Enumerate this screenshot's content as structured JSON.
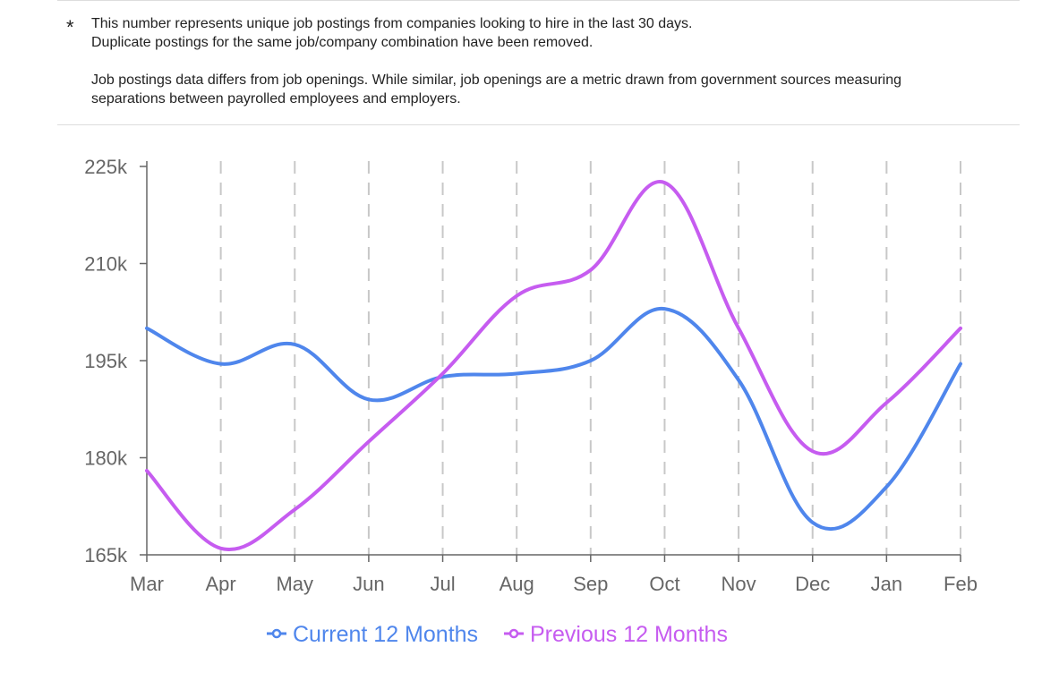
{
  "footnote": {
    "marker": "*",
    "line1": "This number represents unique job postings from companies looking to hire in the last 30 days.",
    "line2": "Duplicate postings for the same job/company combination have been removed.",
    "line3": "Job postings data differs from job openings. While similar, job openings are a metric drawn from government sources measuring",
    "line4": "separations between payrolled employees and employers."
  },
  "chart_data": {
    "type": "line",
    "categories": [
      "Mar",
      "Apr",
      "May",
      "Jun",
      "Jul",
      "Aug",
      "Sep",
      "Oct",
      "Nov",
      "Dec",
      "Jan",
      "Feb"
    ],
    "ylim": [
      165000,
      225000
    ],
    "yticks": [
      165000,
      180000,
      195000,
      210000,
      225000
    ],
    "ytick_labels": [
      "165k",
      "180k",
      "195k",
      "210k",
      "225k"
    ],
    "grid": "vertical dashed",
    "legend_position": "bottom",
    "series": [
      {
        "name": "Current 12 Months",
        "color": "#4f86ec",
        "values": [
          200000,
          194500,
          197500,
          189000,
          192500,
          193000,
          195000,
          203000,
          192000,
          170000,
          175500,
          194500
        ]
      },
      {
        "name": "Previous 12 Months",
        "color": "#c65cf0",
        "values": [
          178000,
          166000,
          172000,
          182500,
          193000,
          205000,
          209000,
          222500,
          200000,
          181000,
          188500,
          200000
        ]
      }
    ]
  }
}
